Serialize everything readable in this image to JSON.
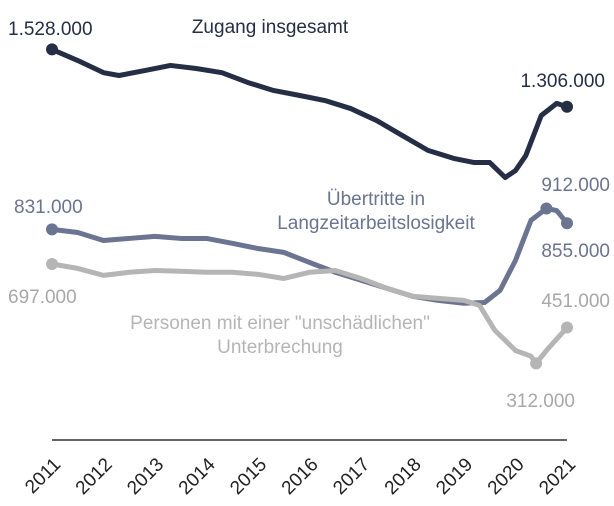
{
  "chart_data": {
    "type": "line",
    "xlim": [
      2011,
      2021
    ],
    "ylim": [
      0,
      1700000
    ],
    "xticks": [
      2011,
      2012,
      2013,
      2014,
      2015,
      2016,
      2017,
      2018,
      2019,
      2020,
      2021
    ],
    "series": [
      {
        "name": "Zugang insgesamt",
        "color": "#262e45",
        "x": [
          2011,
          2011.5,
          2012,
          2012.3,
          2012.8,
          2013.3,
          2013.8,
          2014.3,
          2014.8,
          2015.3,
          2015.8,
          2016.3,
          2016.8,
          2017.3,
          2017.8,
          2018.3,
          2018.8,
          2019.2,
          2019.5,
          2019.8,
          2020,
          2020.2,
          2020.5,
          2020.8,
          2021
        ],
        "values": [
          1528000,
          1485000,
          1438000,
          1427000,
          1446000,
          1466000,
          1454000,
          1438000,
          1400000,
          1369000,
          1350000,
          1330000,
          1299000,
          1253000,
          1195000,
          1137000,
          1106000,
          1090000,
          1090000,
          1032000,
          1059000,
          1117000,
          1272000,
          1319000,
          1306000
        ],
        "value_labels": [
          "1.528.000",
          null,
          null,
          null,
          null,
          null,
          null,
          null,
          null,
          null,
          null,
          null,
          null,
          null,
          null,
          null,
          null,
          null,
          null,
          null,
          null,
          null,
          null,
          null,
          "1.306.000"
        ]
      },
      {
        "name": "Übertritte in Langzeitarbeitslosigkeit",
        "color": "#6b7490",
        "x": [
          2011,
          2011.5,
          2012,
          2012.5,
          2013,
          2013.5,
          2014,
          2014.5,
          2015,
          2015.5,
          2016,
          2016.5,
          2017,
          2017.5,
          2018,
          2018.5,
          2019,
          2019.4,
          2019.7,
          2020,
          2020.3,
          2020.6,
          2020.8,
          2021
        ],
        "values": [
          831000,
          819000,
          788000,
          796000,
          804000,
          796000,
          796000,
          777000,
          757000,
          742000,
          703000,
          665000,
          634000,
          603000,
          572000,
          556000,
          545000,
          548000,
          595000,
          711000,
          866000,
          912000,
          904000,
          855000
        ],
        "value_labels": [
          "831.000",
          null,
          null,
          null,
          null,
          null,
          null,
          null,
          null,
          null,
          null,
          null,
          null,
          null,
          null,
          null,
          null,
          null,
          null,
          null,
          null,
          "912.000",
          null,
          "855.000"
        ]
      },
      {
        "name": "Personen mit einer \"unschädlichen\" Unterbrechung",
        "color": "#b5b5b5",
        "x": [
          2011,
          2011.5,
          2012,
          2012.5,
          2013,
          2013.5,
          2014,
          2014.5,
          2015,
          2015.5,
          2016,
          2016.5,
          2017,
          2017.5,
          2018,
          2018.5,
          2019,
          2019.3,
          2019.6,
          2020,
          2020.3,
          2020.4,
          2020.6,
          2021
        ],
        "values": [
          697000,
          680000,
          653000,
          665000,
          672000,
          669000,
          665000,
          665000,
          657000,
          641000,
          665000,
          672000,
          641000,
          603000,
          572000,
          564000,
          556000,
          537000,
          440000,
          362000,
          340000,
          312000,
          362000,
          451000
        ],
        "value_labels": [
          "697.000",
          null,
          null,
          null,
          null,
          null,
          null,
          null,
          null,
          null,
          null,
          null,
          null,
          null,
          null,
          null,
          null,
          null,
          null,
          null,
          null,
          "312.000",
          null,
          "451.000"
        ]
      }
    ]
  }
}
